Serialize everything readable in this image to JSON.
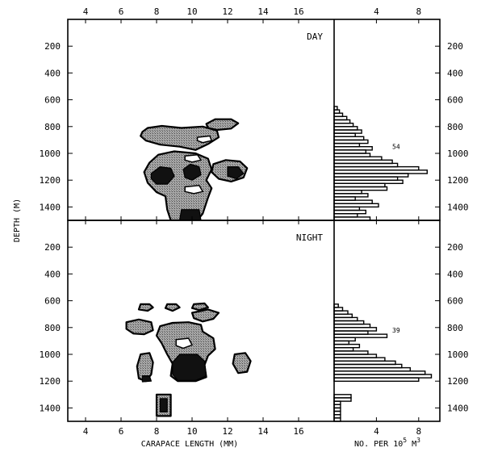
{
  "chart_data": {
    "type": "heatmap",
    "title": "",
    "xlabel": "CARAPACE LENGTH (MM)",
    "ylabel": "DEPTH (M)",
    "hist_xlabel": "NO. PER 10^5 M^3",
    "hist_xlabel_parts": {
      "main": "NO. PER 10",
      "exp": "5",
      "unit": " M",
      "unit_exp": "3"
    },
    "xlim": [
      3,
      18
    ],
    "x_ticks": [
      4,
      6,
      8,
      10,
      12,
      14,
      16
    ],
    "hist_xlim": [
      0,
      10
    ],
    "hist_x_ticks": [
      4,
      8
    ],
    "ylim": [
      1500,
      0
    ],
    "y_ticks": [
      200,
      400,
      600,
      800,
      1000,
      1200,
      1400
    ],
    "panels": [
      {
        "label": "DAY",
        "total": "54",
        "total_depth": 950,
        "contours": [
          {
            "level": "low",
            "points": [
              [
                7.2,
                840
              ],
              [
                7.5,
                810
              ],
              [
                8.3,
                795
              ],
              [
                9.4,
                810
              ],
              [
                10.6,
                800
              ],
              [
                11.4,
                830
              ],
              [
                11.5,
                880
              ],
              [
                10.9,
                930
              ],
              [
                10.2,
                975
              ],
              [
                9.3,
                950
              ],
              [
                8.2,
                935
              ],
              [
                7.4,
                905
              ],
              [
                7.1,
                870
              ]
            ]
          },
          {
            "level": "low",
            "points": [
              [
                10.8,
                780
              ],
              [
                11.3,
                745
              ],
              [
                12.2,
                745
              ],
              [
                12.6,
                775
              ],
              [
                12.2,
                815
              ],
              [
                11.4,
                825
              ],
              [
                10.9,
                810
              ]
            ]
          },
          {
            "level": "low",
            "points": [
              [
                7.6,
                1070
              ],
              [
                8.1,
                1010
              ],
              [
                9.0,
                985
              ],
              [
                10.2,
                1000
              ],
              [
                10.9,
                1040
              ],
              [
                11.1,
                1120
              ],
              [
                10.8,
                1200
              ],
              [
                11.1,
                1260
              ],
              [
                10.9,
                1330
              ],
              [
                10.6,
                1450
              ],
              [
                10.3,
                1500
              ],
              [
                8.8,
                1500
              ],
              [
                8.6,
                1420
              ],
              [
                8.5,
                1320
              ],
              [
                8.0,
                1290
              ],
              [
                7.5,
                1220
              ],
              [
                7.3,
                1140
              ]
            ]
          },
          {
            "level": "low",
            "points": [
              [
                11.2,
                1080
              ],
              [
                11.9,
                1050
              ],
              [
                12.7,
                1060
              ],
              [
                13.1,
                1110
              ],
              [
                12.9,
                1180
              ],
              [
                12.2,
                1210
              ],
              [
                11.5,
                1190
              ],
              [
                11.1,
                1140
              ]
            ]
          },
          {
            "level": "high",
            "points": [
              [
                7.7,
                1150
              ],
              [
                8.2,
                1100
              ],
              [
                8.8,
                1110
              ],
              [
                9.0,
                1170
              ],
              [
                8.6,
                1230
              ],
              [
                8.0,
                1230
              ],
              [
                7.7,
                1190
              ]
            ]
          },
          {
            "level": "high",
            "points": [
              [
                9.5,
                1120
              ],
              [
                9.9,
                1080
              ],
              [
                10.4,
                1100
              ],
              [
                10.5,
                1160
              ],
              [
                10.0,
                1200
              ],
              [
                9.6,
                1180
              ]
            ]
          },
          {
            "level": "high",
            "points": [
              [
                12.0,
                1100
              ],
              [
                12.6,
                1100
              ],
              [
                12.9,
                1150
              ],
              [
                12.5,
                1190
              ],
              [
                12.0,
                1170
              ]
            ]
          },
          {
            "level": "high",
            "points": [
              [
                9.4,
                1420
              ],
              [
                10.4,
                1420
              ],
              [
                10.5,
                1500
              ],
              [
                9.3,
                1500
              ]
            ]
          }
        ],
        "holes": [
          {
            "points": [
              [
                9.6,
                1020
              ],
              [
                10.3,
                1010
              ],
              [
                10.5,
                1050
              ],
              [
                10.0,
                1065
              ],
              [
                9.6,
                1050
              ]
            ]
          },
          {
            "points": [
              [
                9.6,
                1250
              ],
              [
                10.4,
                1240
              ],
              [
                10.6,
                1285
              ],
              [
                10.1,
                1300
              ],
              [
                9.6,
                1285
              ]
            ]
          },
          {
            "points": [
              [
                10.3,
                880
              ],
              [
                11.0,
                870
              ],
              [
                11.1,
                905
              ],
              [
                10.6,
                920
              ],
              [
                10.3,
                905
              ]
            ]
          }
        ],
        "histogram": {
          "bin_size": 25,
          "depths": [
            650,
            675,
            700,
            725,
            750,
            775,
            800,
            825,
            850,
            875,
            900,
            925,
            950,
            975,
            1000,
            1025,
            1050,
            1075,
            1100,
            1125,
            1150,
            1175,
            1200,
            1225,
            1250,
            1275,
            1300,
            1325,
            1350,
            1375,
            1400,
            1425,
            1450,
            1475
          ],
          "values": [
            0.3,
            0.5,
            0.8,
            1.2,
            1.5,
            1.8,
            2.2,
            2.6,
            2.0,
            2.8,
            3.2,
            2.4,
            3.6,
            3.0,
            3.4,
            4.5,
            5.5,
            6.0,
            8.0,
            8.8,
            7.0,
            6.0,
            6.5,
            4.8,
            5.0,
            2.6,
            3.2,
            2.0,
            3.6,
            4.2,
            2.4,
            3.0,
            2.2,
            3.4
          ]
        }
      },
      {
        "label": "NIGHT",
        "total": "39",
        "total_depth": 820,
        "contours": [
          {
            "level": "low",
            "points": [
              [
                7.1,
                625
              ],
              [
                7.6,
                625
              ],
              [
                7.8,
                650
              ],
              [
                7.5,
                675
              ],
              [
                7.0,
                665
              ]
            ]
          },
          {
            "level": "low",
            "points": [
              [
                8.6,
                625
              ],
              [
                9.1,
                625
              ],
              [
                9.3,
                650
              ],
              [
                8.9,
                675
              ],
              [
                8.5,
                655
              ]
            ]
          },
          {
            "level": "low",
            "points": [
              [
                10.1,
                625
              ],
              [
                10.7,
                620
              ],
              [
                10.9,
                650
              ],
              [
                10.4,
                670
              ],
              [
                10.0,
                655
              ]
            ]
          },
          {
            "level": "low",
            "points": [
              [
                10.0,
                690
              ],
              [
                10.9,
                665
              ],
              [
                11.5,
                690
              ],
              [
                11.2,
                735
              ],
              [
                10.6,
                755
              ],
              [
                10.1,
                730
              ]
            ]
          },
          {
            "level": "low",
            "points": [
              [
                6.3,
                760
              ],
              [
                7.0,
                740
              ],
              [
                7.7,
                760
              ],
              [
                7.8,
                820
              ],
              [
                7.3,
                850
              ],
              [
                6.7,
                845
              ],
              [
                6.3,
                810
              ]
            ]
          },
          {
            "level": "low",
            "points": [
              [
                8.2,
                790
              ],
              [
                8.9,
                765
              ],
              [
                9.8,
                760
              ],
              [
                10.5,
                780
              ],
              [
                10.6,
                830
              ],
              [
                11.2,
                880
              ],
              [
                11.3,
                960
              ],
              [
                10.9,
                1010
              ],
              [
                10.7,
                1080
              ],
              [
                10.8,
                1170
              ],
              [
                10.2,
                1200
              ],
              [
                9.2,
                1200
              ],
              [
                8.8,
                1160
              ],
              [
                8.9,
                1070
              ],
              [
                8.6,
                1000
              ],
              [
                8.3,
                920
              ],
              [
                8.0,
                860
              ]
            ]
          },
          {
            "level": "low",
            "points": [
              [
                7.1,
                1000
              ],
              [
                7.6,
                990
              ],
              [
                7.8,
                1060
              ],
              [
                7.7,
                1150
              ],
              [
                7.4,
                1200
              ],
              [
                7.0,
                1180
              ],
              [
                6.9,
                1090
              ]
            ]
          },
          {
            "level": "low",
            "points": [
              [
                12.4,
                1000
              ],
              [
                13.0,
                990
              ],
              [
                13.3,
                1050
              ],
              [
                13.1,
                1130
              ],
              [
                12.6,
                1140
              ],
              [
                12.3,
                1070
              ]
            ]
          },
          {
            "level": "low",
            "points": [
              [
                8.0,
                1300
              ],
              [
                8.8,
                1300
              ],
              [
                8.8,
                1460
              ],
              [
                8.0,
                1460
              ]
            ]
          },
          {
            "level": "high",
            "points": [
              [
                8.9,
                1060
              ],
              [
                9.3,
                1000
              ],
              [
                10.3,
                1000
              ],
              [
                10.7,
                1050
              ],
              [
                10.8,
                1160
              ],
              [
                10.2,
                1195
              ],
              [
                9.2,
                1195
              ],
              [
                8.9,
                1150
              ]
            ]
          },
          {
            "level": "high",
            "points": [
              [
                7.2,
                1160
              ],
              [
                7.6,
                1160
              ],
              [
                7.7,
                1200
              ],
              [
                7.2,
                1205
              ]
            ]
          },
          {
            "level": "high",
            "points": [
              [
                8.2,
                1330
              ],
              [
                8.6,
                1330
              ],
              [
                8.6,
                1430
              ],
              [
                8.2,
                1430
              ]
            ]
          }
        ],
        "holes": [
          {
            "points": [
              [
                9.1,
                890
              ],
              [
                9.8,
                880
              ],
              [
                10.0,
                930
              ],
              [
                9.5,
                955
              ],
              [
                9.1,
                935
              ]
            ]
          }
        ],
        "histogram": {
          "bin_size": 25,
          "depths": [
            625,
            650,
            675,
            700,
            725,
            750,
            775,
            800,
            825,
            850,
            875,
            900,
            925,
            950,
            975,
            1000,
            1025,
            1050,
            1075,
            1100,
            1125,
            1150,
            1175,
            1300,
            1325,
            1350,
            1375,
            1400,
            1425,
            1450,
            1475
          ],
          "values": [
            0.4,
            0.8,
            1.3,
            1.7,
            2.2,
            2.8,
            3.4,
            4.0,
            3.2,
            5.0,
            2.0,
            1.4,
            2.4,
            1.8,
            3.2,
            4.0,
            4.8,
            5.8,
            6.4,
            7.2,
            8.6,
            9.2,
            8.0,
            1.6,
            1.6,
            0.6,
            0.6,
            0.6,
            0.6,
            0.6,
            0.6
          ]
        }
      }
    ]
  }
}
